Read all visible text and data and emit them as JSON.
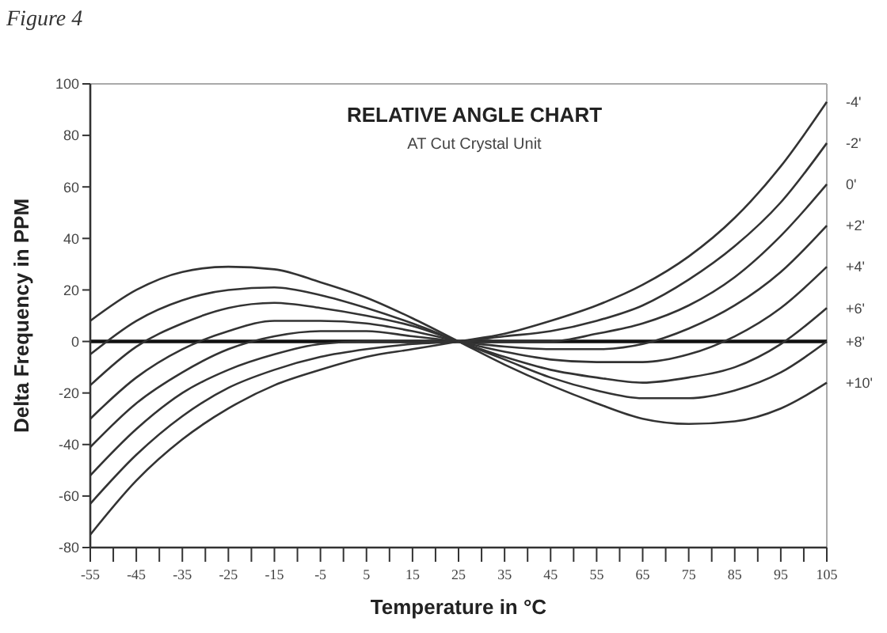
{
  "chart_data": {
    "type": "line",
    "title": "RELATIVE ANGLE CHART",
    "subtitle": "AT Cut Crystal Unit",
    "xlabel": "Temperature in °C",
    "ylabel": "Delta Frequency in PPM",
    "annotations": [
      "Figure 4"
    ],
    "x": [
      -55,
      -45,
      -35,
      -25,
      -15,
      -5,
      5,
      15,
      25,
      35,
      45,
      55,
      65,
      75,
      85,
      95,
      105
    ],
    "xlim": [
      -55,
      105
    ],
    "xticks": [
      -55,
      {
        "value": -50,
        "label": null
      },
      -45,
      {
        "value": -40,
        "label": null
      },
      -35,
      {
        "value": -30,
        "label": null
      },
      -25,
      {
        "value": -20,
        "label": null
      },
      -15,
      {
        "value": -10,
        "label": null
      },
      -5,
      {
        "value": 0,
        "label": null
      },
      5,
      {
        "value": 10,
        "label": null
      },
      15,
      {
        "value": 20,
        "label": null
      },
      25,
      {
        "value": 30,
        "label": null
      },
      35,
      {
        "value": 40,
        "label": null
      },
      45,
      {
        "value": 50,
        "label": null
      },
      55,
      {
        "value": 60,
        "label": null
      },
      65,
      {
        "value": 70,
        "label": null
      },
      75,
      {
        "value": 80,
        "label": null
      },
      85,
      {
        "value": 90,
        "label": null
      },
      95,
      {
        "value": 100,
        "label": null
      },
      105
    ],
    "ylim": [
      -80,
      100
    ],
    "yticks": [
      -80,
      -60,
      -40,
      -20,
      0,
      20,
      40,
      60,
      80,
      100
    ],
    "grid": false,
    "legend": false,
    "marker": "none",
    "line_style": "solid",
    "ref_lines": [
      {
        "axis": "y",
        "value": 0,
        "color": "#111111"
      }
    ],
    "series": [
      {
        "name": "-4'",
        "color": "#333333",
        "values": [
          -75,
          -54,
          -38,
          -26,
          -17,
          -11,
          -6,
          -3,
          0,
          3,
          8,
          14,
          22,
          33,
          48,
          68,
          93
        ]
      },
      {
        "name": "-2'",
        "color": "#333333",
        "values": [
          -63,
          -44,
          -29,
          -18,
          -11,
          -6,
          -3,
          -1,
          0,
          2,
          4,
          8,
          14,
          24,
          37,
          54,
          77
        ]
      },
      {
        "name": "0'",
        "color": "#333333",
        "values": [
          -52,
          -34,
          -20,
          -11,
          -5,
          -1,
          0,
          0,
          0,
          0,
          0,
          3,
          7,
          14,
          25,
          41,
          61
        ]
      },
      {
        "name": "+2'",
        "color": "#333333",
        "values": [
          -41,
          -24,
          -12,
          -3,
          2,
          4,
          4,
          2,
          0,
          -2,
          -3,
          -3,
          -1,
          5,
          14,
          27,
          45
        ]
      },
      {
        "name": "+4'",
        "color": "#333333",
        "values": [
          -30,
          -14,
          -3,
          4,
          8,
          8,
          7,
          4,
          0,
          -4,
          -7,
          -8,
          -8,
          -5,
          2,
          13,
          29
        ]
      },
      {
        "name": "+6'",
        "color": "#333333",
        "values": [
          -17,
          -2,
          7,
          13,
          15,
          13,
          10,
          6,
          0,
          -6,
          -11,
          -14,
          -16,
          -14,
          -10,
          -1,
          13
        ]
      },
      {
        "name": "+8'",
        "color": "#333333",
        "values": [
          -5,
          8,
          16,
          20,
          21,
          18,
          13,
          7,
          0,
          -7,
          -14,
          -19,
          -22,
          -22,
          -19,
          -12,
          0
        ]
      },
      {
        "name": "+10'",
        "color": "#333333",
        "values": [
          8,
          20,
          27,
          29,
          28,
          23,
          17,
          9,
          0,
          -9,
          -17,
          -24,
          -30,
          -32,
          -31,
          -26,
          -16
        ]
      }
    ]
  }
}
